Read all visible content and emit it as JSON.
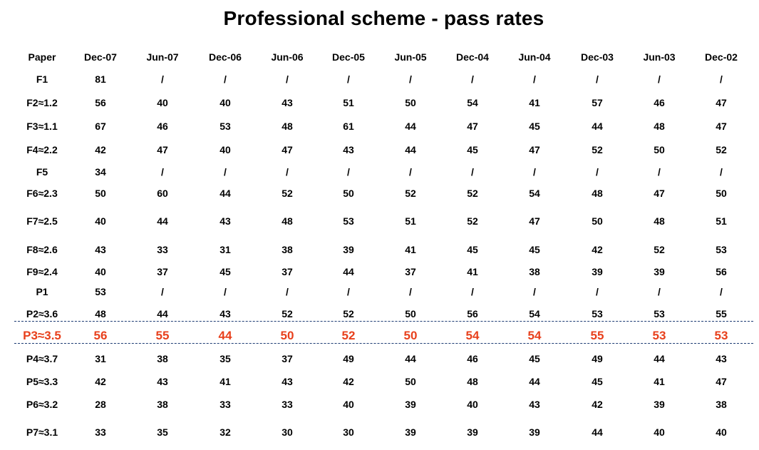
{
  "title": "Professional scheme - pass rates",
  "highlight_color": "#e8401c",
  "divider_color": "#1c3b73",
  "headers": [
    "Paper",
    "Dec-07",
    "Jun-07",
    "Dec-06",
    "Jun-06",
    "Dec-05",
    "Jun-05",
    "Dec-04",
    "Jun-04",
    "Dec-03",
    "Jun-03",
    "Dec-02"
  ],
  "rows": [
    {
      "cells": [
        "F1",
        "81",
        "/",
        "/",
        "/",
        "/",
        "/",
        "/",
        "/",
        "/",
        "/",
        "/"
      ]
    },
    {
      "cells": [
        "F2≈1.2",
        "56",
        "40",
        "40",
        "43",
        "51",
        "50",
        "54",
        "41",
        "57",
        "46",
        "47"
      ]
    },
    {
      "cells": [
        "F3≈1.1",
        "67",
        "46",
        "53",
        "48",
        "61",
        "44",
        "47",
        "45",
        "44",
        "48",
        "47"
      ]
    },
    {
      "cells": [
        "F4≈2.2",
        "42",
        "47",
        "40",
        "47",
        "43",
        "44",
        "45",
        "47",
        "52",
        "50",
        "52"
      ]
    },
    {
      "cells": [
        "F5",
        "34",
        "/",
        "/",
        "/",
        "/",
        "/",
        "/",
        "/",
        "/",
        "/",
        "/"
      ]
    },
    {
      "cells": [
        "F6≈2.3",
        "50",
        "60",
        "44",
        "52",
        "50",
        "52",
        "52",
        "54",
        "48",
        "47",
        "50"
      ]
    },
    {
      "cells": [
        "F7≈2.5",
        "40",
        "44",
        "43",
        "48",
        "53",
        "51",
        "52",
        "47",
        "50",
        "48",
        "51"
      ]
    },
    {
      "cells": [
        "F8≈2.6",
        "43",
        "33",
        "31",
        "38",
        "39",
        "41",
        "45",
        "45",
        "42",
        "52",
        "53"
      ]
    },
    {
      "cells": [
        "F9≈2.4",
        "40",
        "37",
        "45",
        "37",
        "44",
        "37",
        "41",
        "38",
        "39",
        "39",
        "56"
      ]
    },
    {
      "cells": [
        "P1",
        "53",
        "/",
        "/",
        "/",
        "/",
        "/",
        "/",
        "/",
        "/",
        "/",
        "/"
      ]
    },
    {
      "cells": [
        "P2≈3.6",
        "48",
        "44",
        "43",
        "52",
        "52",
        "50",
        "56",
        "54",
        "53",
        "53",
        "55"
      ]
    },
    {
      "cells": [
        "P3≈3.5",
        "56",
        "55",
        "44",
        "50",
        "52",
        "50",
        "54",
        "54",
        "55",
        "53",
        "53"
      ],
      "highlight": true
    },
    {
      "cells": [
        "P4≈3.7",
        "31",
        "38",
        "35",
        "37",
        "49",
        "44",
        "46",
        "45",
        "49",
        "44",
        "43"
      ]
    },
    {
      "cells": [
        "P5≈3.3",
        "42",
        "43",
        "41",
        "43",
        "42",
        "50",
        "48",
        "44",
        "45",
        "41",
        "47"
      ]
    },
    {
      "cells": [
        "P6≈3.2",
        "28",
        "38",
        "33",
        "33",
        "40",
        "39",
        "40",
        "43",
        "42",
        "39",
        "38"
      ]
    },
    {
      "cells": [
        "P7≈3.1",
        "33",
        "35",
        "32",
        "30",
        "30",
        "39",
        "39",
        "39",
        "44",
        "40",
        "40"
      ]
    }
  ]
}
